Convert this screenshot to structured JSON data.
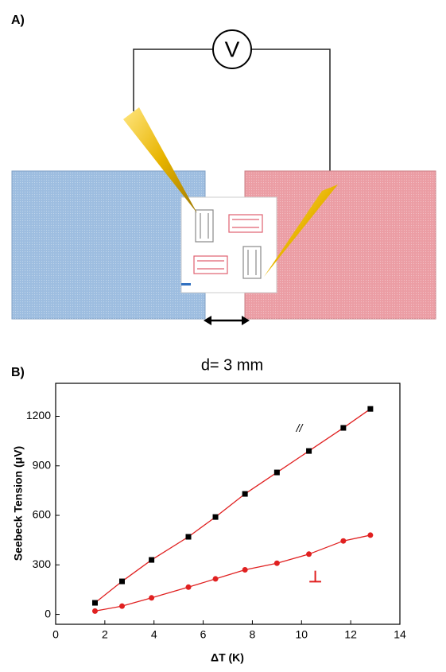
{
  "panel_a": {
    "label": "A)",
    "meter": "V",
    "gap_label": "d= 3 mm"
  },
  "chart_data": {
    "type": "line",
    "label": "B)",
    "x_label": "ΔT (K)",
    "y_label": "Seebeck Tension (μV)",
    "xlim": [
      0,
      14
    ],
    "ylim": [
      -60,
      1400
    ],
    "xticks": [
      0,
      2,
      4,
      6,
      8,
      10,
      12,
      14
    ],
    "yticks": [
      0,
      300,
      600,
      900,
      1200
    ],
    "series": [
      {
        "name": "//",
        "color": "#000000",
        "line_color": "#e02020",
        "marker": "square",
        "x": [
          1.6,
          2.7,
          3.9,
          5.4,
          6.5,
          7.7,
          9.0,
          10.3,
          11.7,
          12.8
        ],
        "values": [
          70,
          200,
          330,
          470,
          590,
          730,
          860,
          990,
          1130,
          1245
        ]
      },
      {
        "name": "⊥",
        "color": "#e02020",
        "line_color": "#e02020",
        "marker": "circle",
        "x": [
          1.6,
          2.7,
          3.9,
          5.4,
          6.5,
          7.7,
          9.0,
          10.3,
          11.7,
          12.8
        ],
        "values": [
          20,
          50,
          100,
          165,
          215,
          270,
          310,
          365,
          445,
          480
        ]
      }
    ]
  }
}
